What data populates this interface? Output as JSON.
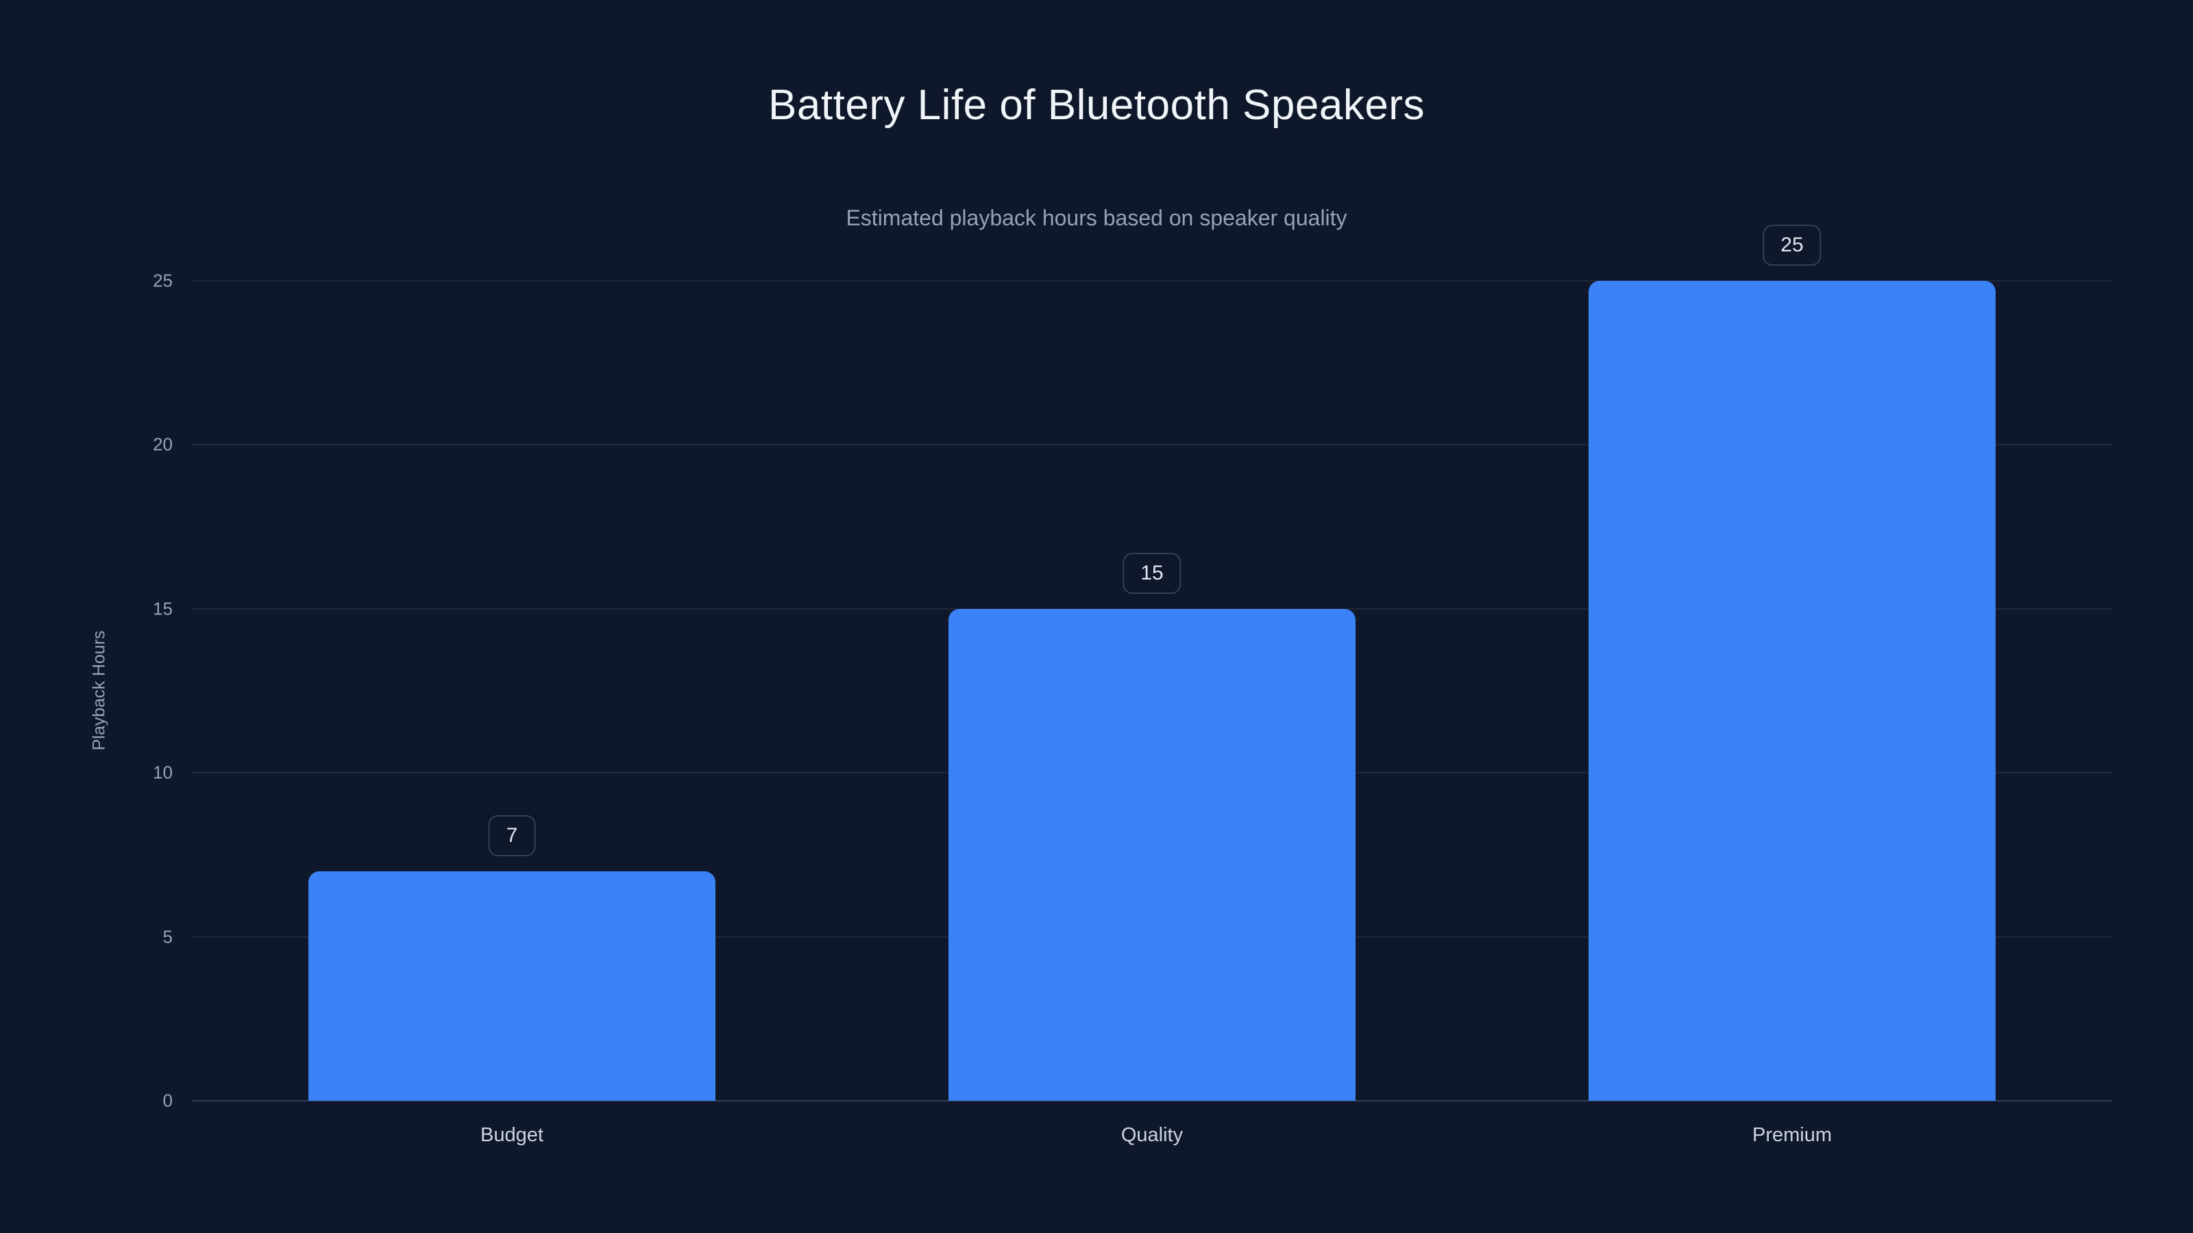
{
  "chart_data": {
    "type": "bar",
    "title": "Battery Life of Bluetooth Speakers",
    "subtitle": "Estimated playback hours based on speaker quality",
    "categories": [
      "Budget",
      "Quality",
      "Premium"
    ],
    "values": [
      7,
      15,
      25
    ],
    "xlabel": "",
    "ylabel": "Playback Hours",
    "ylim": [
      0,
      25
    ],
    "yticks": [
      0,
      5,
      10,
      15,
      20,
      25
    ],
    "grid": true,
    "legend": "none",
    "bar_color": "#3b82f6",
    "background_color": "#0f172a",
    "title_color": "#f1f5f9",
    "subtitle_color": "#94a3b8"
  }
}
